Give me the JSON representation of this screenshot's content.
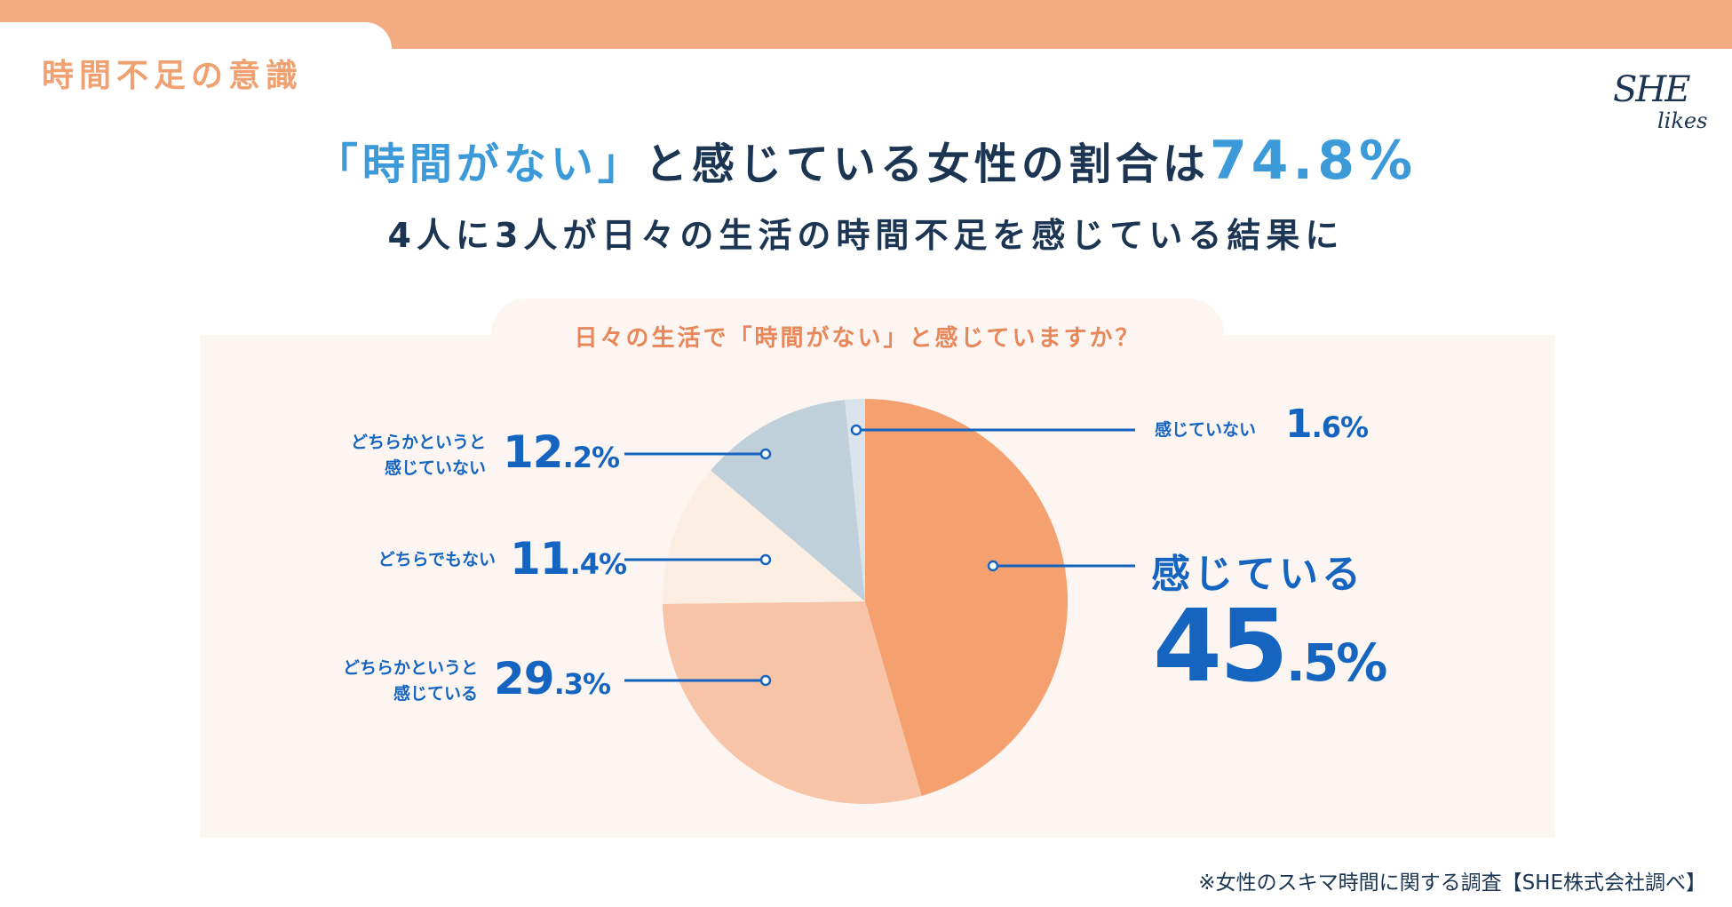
{
  "section_title": "時間不足の意識",
  "logo": {
    "line1": "SHE",
    "line2": "likes"
  },
  "headline": {
    "highlight": "「時間がない」",
    "middle": "と感じている女性の割合は",
    "percent": "74.8%"
  },
  "subheadline": "4人に3人が日々の生活の時間不足を感じている結果に",
  "footnote": "※女性のスキマ時間に関する調査【SHE株式会社調べ】",
  "chart_data": {
    "type": "pie",
    "title": "日々の生活で「時間がない」と感じていますか？",
    "start": "top",
    "direction": "clockwise",
    "slices": [
      {
        "label": "感じている",
        "value": 45.5,
        "int": "45",
        "dec": ".5%",
        "color": "#f4a06f"
      },
      {
        "label": "どちらかというと感じている",
        "line1": "どちらかというと",
        "line2": "感じている",
        "value": 29.3,
        "int": "29",
        "dec": ".3%",
        "color": "#f7c4a8"
      },
      {
        "label": "どちらでもない",
        "value": 11.4,
        "int": "11",
        "dec": ".4%",
        "color": "#fdeee4"
      },
      {
        "label": "どちらかというと感じていない",
        "line1": "どちらかというと",
        "line2": "感じていない",
        "value": 12.2,
        "int": "12",
        "dec": ".2%",
        "color": "#bfd0da"
      },
      {
        "label": "感じていない",
        "value": 1.6,
        "int": "1",
        "dec": ".6%",
        "color": "#dbe4ea"
      }
    ]
  }
}
